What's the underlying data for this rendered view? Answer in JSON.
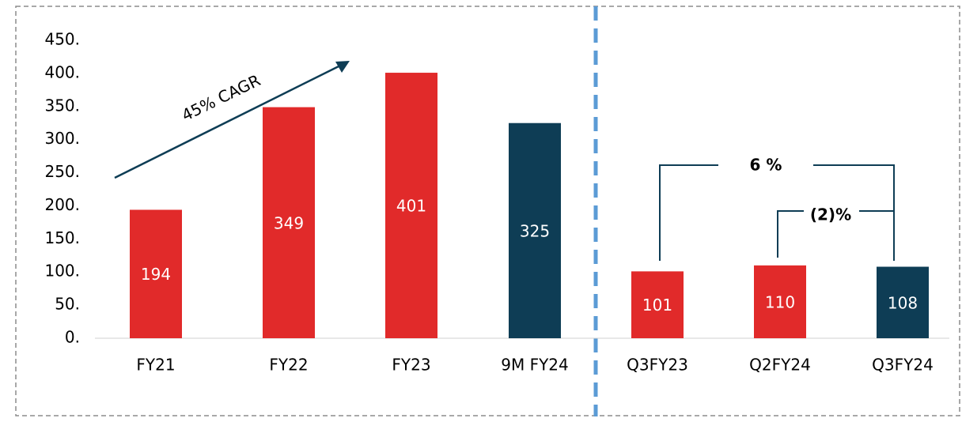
{
  "chart_data": {
    "type": "bar",
    "categories": [
      "FY21",
      "FY22",
      "FY23",
      "9M FY24",
      "Q3FY23",
      "Q2FY24",
      "Q3FY24"
    ],
    "values": [
      194,
      349,
      401,
      325,
      101,
      110,
      108
    ],
    "colors": [
      "#e12a2a",
      "#e12a2a",
      "#e12a2a",
      "#0e3d55",
      "#e12a2a",
      "#e12a2a",
      "#0e3d55"
    ],
    "ylim": [
      0,
      450
    ],
    "yticks": [
      {
        "value": 0,
        "label": "0."
      },
      {
        "value": 50,
        "label": "50."
      },
      {
        "value": 100,
        "label": "100."
      },
      {
        "value": 150,
        "label": "150."
      },
      {
        "value": 200,
        "label": "200."
      },
      {
        "value": 250,
        "label": "250."
      },
      {
        "value": 300,
        "label": "300."
      },
      {
        "value": 350,
        "label": "350."
      },
      {
        "value": 400,
        "label": "400."
      },
      {
        "value": 450,
        "label": "450."
      }
    ],
    "grid": false,
    "annotations": [
      "45% CAGR",
      "6 %",
      "(2)%"
    ]
  }
}
